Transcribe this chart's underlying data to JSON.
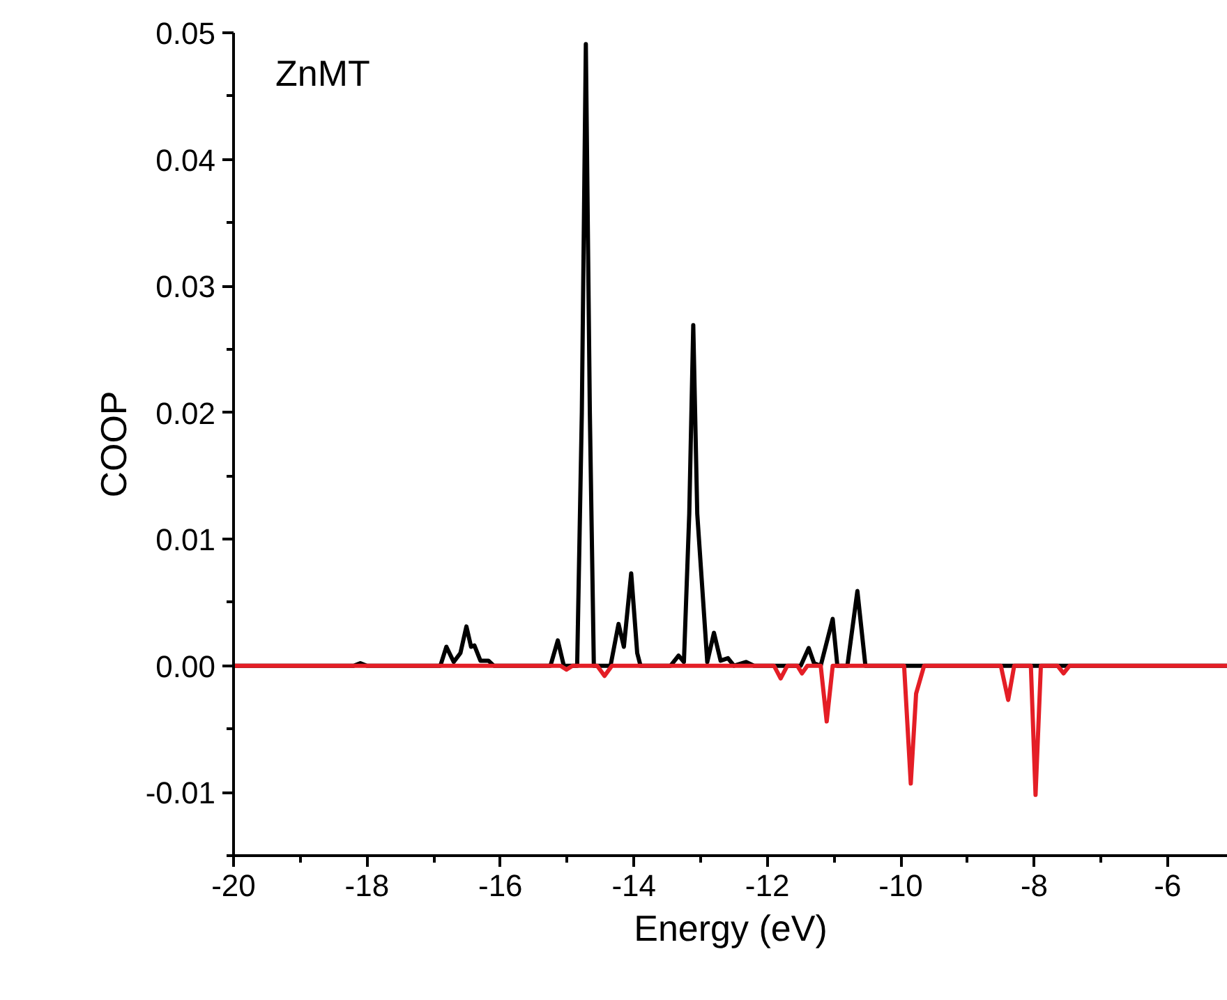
{
  "chart_data": {
    "type": "line",
    "xlabel": "Energy (eV)",
    "ylabel": "COOP",
    "annotations": [
      "ZnMT"
    ],
    "xlim": [
      -20,
      -5.1
    ],
    "ylim": [
      -0.015,
      0.05
    ],
    "xticks": [
      -20,
      {
        "value": -19,
        "label": null
      },
      -18,
      {
        "value": -17,
        "label": null
      },
      -16,
      {
        "value": -15,
        "label": null
      },
      -14,
      {
        "value": -13,
        "label": null
      },
      -12,
      {
        "value": -11,
        "label": null
      },
      -10,
      {
        "value": -9,
        "label": null
      },
      -8,
      {
        "value": -7,
        "label": null
      },
      -6
    ],
    "yticks": [
      {
        "value": -0.015,
        "label": null
      },
      {
        "value": -0.01,
        "label": "-0.01"
      },
      {
        "value": -0.005,
        "label": null
      },
      {
        "value": 0,
        "label": "0.00"
      },
      {
        "value": 0.005,
        "label": null
      },
      {
        "value": 0.01,
        "label": "0.01"
      },
      {
        "value": 0.015,
        "label": null
      },
      {
        "value": 0.02,
        "label": "0.02"
      },
      {
        "value": 0.025,
        "label": null
      },
      {
        "value": 0.03,
        "label": "0.03"
      },
      {
        "value": 0.035,
        "label": null
      },
      {
        "value": 0.04,
        "label": "0.04"
      },
      {
        "value": 0.045,
        "label": null
      },
      {
        "value": 0.05,
        "label": "0.05"
      }
    ],
    "grid": false,
    "marker": "none",
    "line_style": "solid",
    "series": [
      {
        "color": "#000000",
        "x": [
          -20,
          -18.2,
          -18.1,
          -18.0,
          -16.9,
          -16.81,
          -16.7,
          -16.6,
          -16.51,
          -16.44,
          -16.39,
          -16.3,
          -16.18,
          -16.1,
          -15.25,
          -15.14,
          -15.05,
          -14.85,
          -14.78,
          -14.72,
          -14.66,
          -14.6,
          -14.35,
          -14.23,
          -14.15,
          -14.04,
          -13.95,
          -13.9,
          -13.45,
          -13.33,
          -13.25,
          -13.17,
          -13.11,
          -13.05,
          -12.9,
          -12.8,
          -12.7,
          -12.59,
          -12.5,
          -12.32,
          -12.2,
          -11.5,
          -11.38,
          -11.3,
          -11.2,
          -11.02,
          -10.95,
          -10.8,
          -10.65,
          -10.53,
          -5.1
        ],
        "values": [
          0,
          0,
          0.0002,
          0,
          0,
          0.0015,
          0.0003,
          0.001,
          0.0031,
          0.0015,
          0.0016,
          0.0004,
          0.0004,
          0,
          0,
          0.002,
          0,
          0,
          0.02,
          0.0491,
          0.02,
          0,
          0,
          0.0033,
          0.0015,
          0.0073,
          0.001,
          0,
          0,
          0.0008,
          0.0003,
          0.012,
          0.0269,
          0.012,
          0.0003,
          0.0026,
          0.0004,
          0.0006,
          0,
          0.0003,
          0,
          0,
          0.0014,
          0.0002,
          0,
          0.0037,
          0,
          0,
          0.0059,
          0,
          0
        ]
      },
      {
        "color": "#e41e26",
        "x": [
          -20,
          -15.1,
          -15.01,
          -14.92,
          -14.55,
          -14.44,
          -14.33,
          -11.9,
          -11.8,
          -11.7,
          -11.55,
          -11.48,
          -11.4,
          -11.2,
          -11.11,
          -11.02,
          -9.95,
          -9.85,
          -9.77,
          -9.65,
          -8.5,
          -8.39,
          -8.3,
          -8.05,
          -7.98,
          -7.9,
          -7.65,
          -7.56,
          -7.47,
          -5.1
        ],
        "values": [
          0,
          0,
          -0.0003,
          0,
          0,
          -0.0008,
          0,
          0,
          -0.001,
          0,
          0,
          -0.0006,
          0,
          0,
          -0.0044,
          0,
          0,
          -0.0093,
          -0.0022,
          0,
          0,
          -0.0027,
          0,
          0,
          -0.0102,
          0,
          0,
          -0.0006,
          0,
          0
        ]
      }
    ]
  }
}
